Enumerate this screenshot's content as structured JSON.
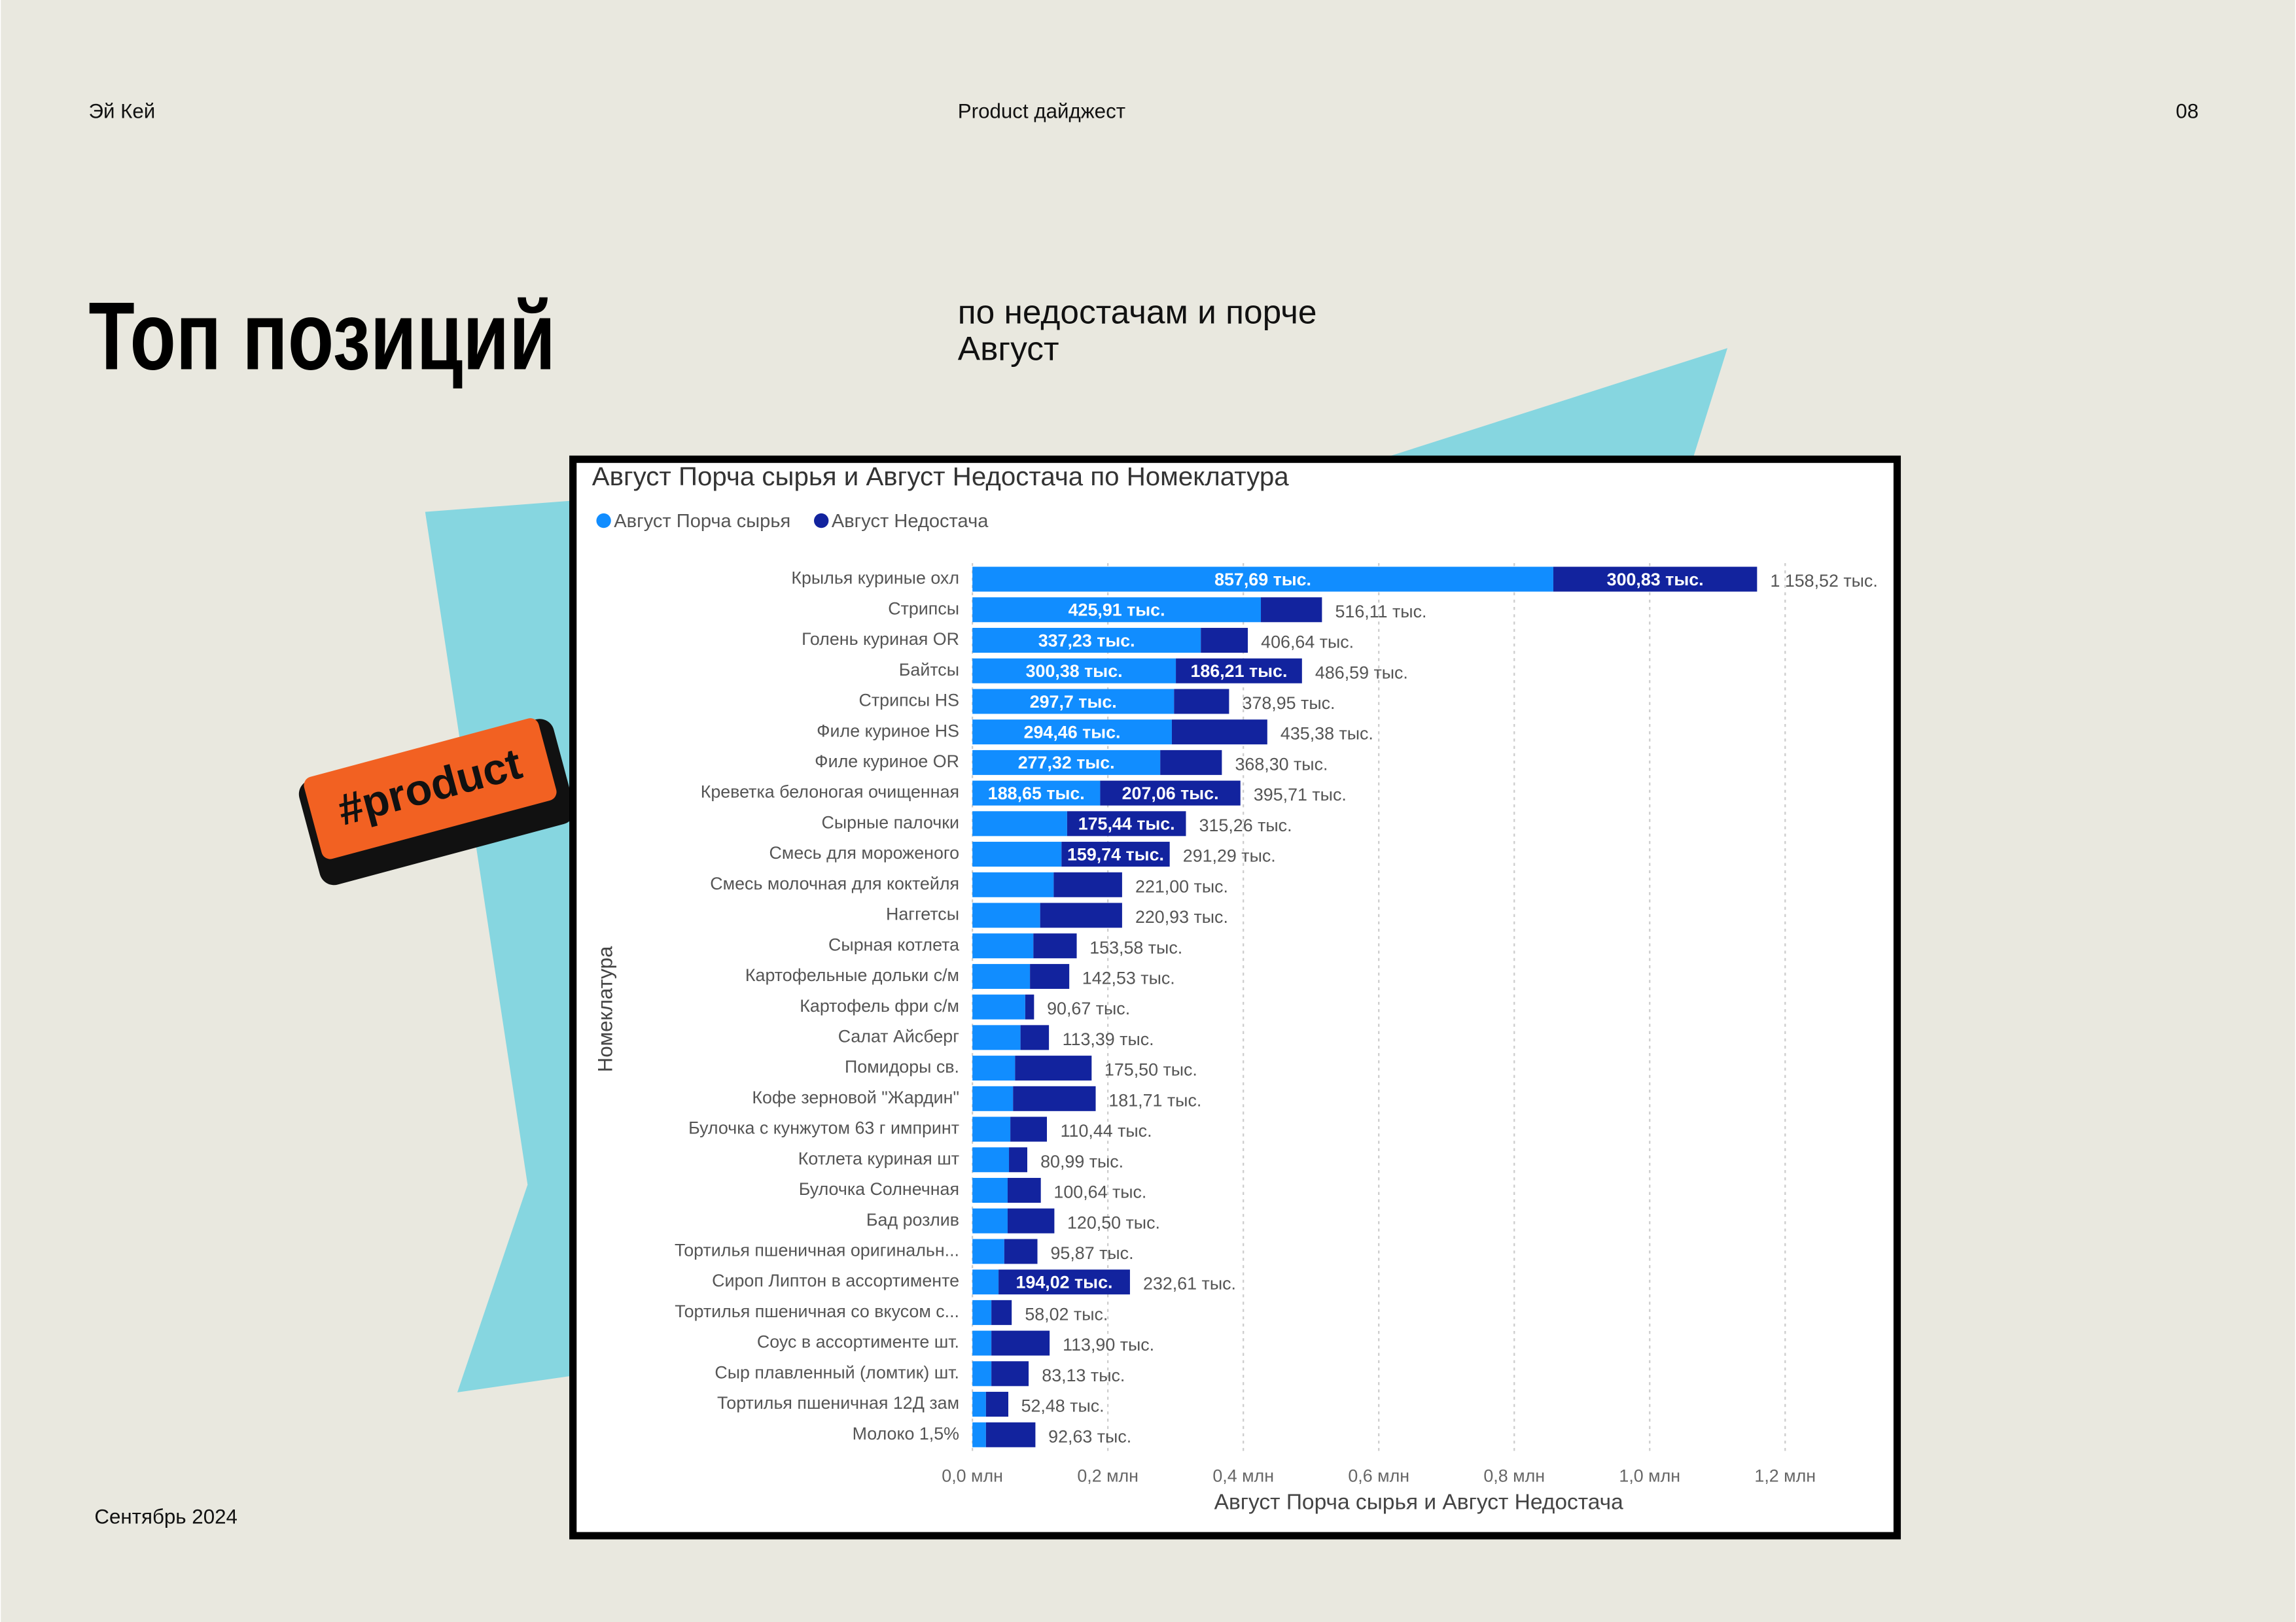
{
  "slide": {
    "header": {
      "left": "Эй Кей",
      "center": "Product дайджест",
      "page": "08"
    },
    "title": "Топ позиций",
    "subtitle": [
      "по недостачам и порче",
      "Август"
    ],
    "tag": "#product",
    "footer": "Сентябрь 2024"
  },
  "chart_data": {
    "type": "bar",
    "orientation": "horizontal",
    "stacked": true,
    "title": "Август Порча сырья и Август Недостача по Номеклатура",
    "x_label": "Август Порча сырья и Август Недостача",
    "y_label": "Номеклатура",
    "categories": [
      "Крылья куриные охл",
      "Стрипсы",
      "Голень куриная OR",
      "Байтсы",
      "Стрипсы HS",
      "Филе куриное HS",
      "Филе куриное OR",
      "Креветка белоногая очищенная",
      "Сырные палочки",
      "Смесь для мороженого",
      "Смесь молочная для коктейля",
      "Наггетсы",
      "Сырная котлета",
      "Картофельные дольки с/м",
      "Картофель фри с/м",
      "Салат Айсберг",
      "Помидоры св.",
      "Кофе зерновой \"Жардин\"",
      "Булочка с кунжутом 63 г импринт",
      "Котлета куриная шт",
      "Булочка Солнечная",
      "Бад розлив",
      "Тортилья пшеничная оригинальн...",
      "Сироп Липтон в ассортименте",
      "Тортилья пшеничная со вкусом с...",
      "Соус в ассортименте шт.",
      "Сыр плавленный (ломтик) шт.",
      "Тортилья пшеничная 12Д зам",
      "Молоко 1,5%"
    ],
    "series": [
      {
        "name": "Август Порча сырья",
        "color": "#118dff",
        "values": [
          0.85769,
          0.42591,
          0.33723,
          0.30038,
          0.2977,
          0.29446,
          0.27732,
          0.18865,
          0.13982,
          0.13155,
          0.12,
          0.1,
          0.09,
          0.085,
          0.078,
          0.071,
          0.063,
          0.06,
          0.056,
          0.054,
          0.052,
          0.052,
          0.047,
          0.03859,
          0.028,
          0.028,
          0.028,
          0.02,
          0.02
        ],
        "value_labels": [
          "857,69 тыс.",
          "425,91 тыс.",
          "337,23 тыс.",
          "300,38 тыс.",
          "297,7 тыс.",
          "294,46 тыс.",
          "277,32 тыс.",
          "188,65 тыс.",
          null,
          null,
          null,
          null,
          null,
          null,
          null,
          null,
          null,
          null,
          null,
          null,
          null,
          null,
          null,
          null,
          null,
          null,
          null,
          null,
          null
        ]
      },
      {
        "name": "Август Недостача",
        "color": "#12239e",
        "values": [
          0.30083,
          0.0902,
          0.06941,
          0.18621,
          0.08125,
          0.14092,
          0.09098,
          0.20706,
          0.17544,
          0.15974,
          0.101,
          0.121,
          0.064,
          0.058,
          0.013,
          0.042,
          0.113,
          0.122,
          0.054,
          0.027,
          0.049,
          0.069,
          0.049,
          0.19402,
          0.03,
          0.086,
          0.055,
          0.033,
          0.073
        ],
        "value_labels": [
          "300,83 тыс.",
          null,
          null,
          "186,21 тыс.",
          null,
          null,
          null,
          "207,06 тыс.",
          "175,44 тыс.",
          "159,74 тыс.",
          null,
          null,
          null,
          null,
          null,
          null,
          null,
          null,
          null,
          null,
          null,
          null,
          null,
          "194,02 тыс.",
          null,
          null,
          null,
          null,
          null
        ]
      }
    ],
    "totals": {
      "values": [
        1.15852,
        0.51611,
        0.40664,
        0.48659,
        0.37895,
        0.43538,
        0.3683,
        0.39571,
        0.31526,
        0.29129,
        0.221,
        0.22093,
        0.15358,
        0.14253,
        0.09067,
        0.11339,
        0.1755,
        0.18171,
        0.11044,
        0.08099,
        0.10064,
        0.1205,
        0.09587,
        0.23261,
        0.05802,
        0.1139,
        0.08313,
        0.05248,
        0.09263
      ],
      "value_labels": [
        "1 158,52 тыс.",
        "516,11 тыс.",
        "406,64 тыс.",
        "486,59 тыс.",
        "378,95 тыс.",
        "435,38 тыс.",
        "368,30 тыс.",
        "395,71 тыс.",
        "315,26 тыс.",
        "291,29 тыс.",
        "221,00 тыс.",
        "220,93 тыс.",
        "153,58 тыс.",
        "142,53 тыс.",
        "90,67 тыс.",
        "113,39 тыс.",
        "175,50 тыс.",
        "181,71 тыс.",
        "110,44 тыс.",
        "80,99 тыс.",
        "100,64 тыс.",
        "120,50 тыс.",
        "95,87 тыс.",
        "232,61 тыс.",
        "58,02 тыс.",
        "113,90 тыс.",
        "83,13 тыс.",
        "52,48 тыс.",
        "92,63 тыс."
      ]
    },
    "xlim": [
      0,
      1.32
    ],
    "xticks": [
      {
        "value": 0,
        "label": "0,0 млн"
      },
      {
        "value": 0.2,
        "label": "0,2 млн"
      },
      {
        "value": 0.4,
        "label": "0,4 млн"
      },
      {
        "value": 0.6,
        "label": "0,6 млн"
      },
      {
        "value": 0.8,
        "label": "0,8 млн"
      },
      {
        "value": 1.0,
        "label": "1,0 млн"
      },
      {
        "value": 1.2,
        "label": "1,2 млн"
      }
    ],
    "grid": true,
    "legend": "top-left"
  }
}
